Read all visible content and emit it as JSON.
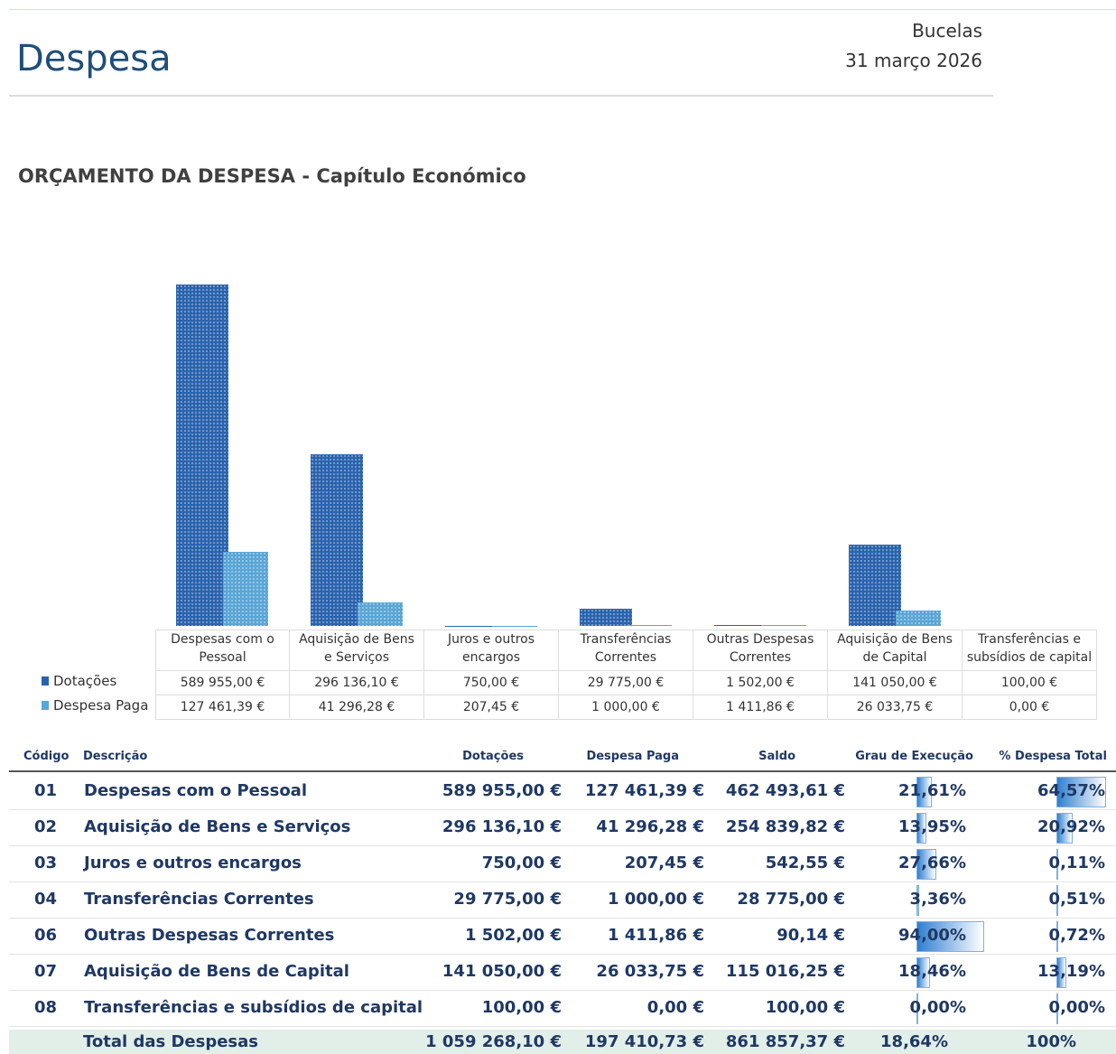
{
  "header": {
    "title": "Despesa",
    "location": "Bucelas",
    "date": "31 março 2026"
  },
  "chart_data": {
    "type": "bar",
    "title": "ORÇAMENTO DA DESPESA - Capítulo Económico",
    "categories": [
      "Despesas com o Pessoal",
      "Aquisição de Bens e Serviços",
      "Juros e outros encargos",
      "Transferências Correntes",
      "Outras Despesas Correntes",
      "Aquisição de Bens de Capital",
      "Transferências e subsídios de capital"
    ],
    "series": [
      {
        "name": "Dotações",
        "color": "#2a63ad",
        "values": [
          589955,
          296136.1,
          750,
          29775,
          1502,
          141050,
          100
        ],
        "value_labels": [
          "589 955,00 €",
          "296 136,10 €",
          "750,00 €",
          "29 775,00 €",
          "1 502,00 €",
          "141 050,00 €",
          "100,00 €"
        ]
      },
      {
        "name": "Despesa Paga",
        "color": "#5aa6d6",
        "values": [
          127461.39,
          41296.28,
          207.45,
          1000,
          1411.86,
          26033.75,
          0
        ],
        "value_labels": [
          "127 461,39 €",
          "41 296,28 €",
          "207,45 €",
          "1 000,00 €",
          "1 411,86 €",
          "26 033,75 €",
          "0,00 €"
        ]
      }
    ]
  },
  "table": {
    "columns": [
      "Código",
      "Descrição",
      "Dotações",
      "Despesa Paga",
      "Saldo",
      "Grau de Execução",
      "% Despesa Total"
    ],
    "rows": [
      {
        "code": "01",
        "description": "Despesas com o Pessoal",
        "dotacoes": "589 955,00 €",
        "paga": "127 461,39 €",
        "saldo": "462 493,61 €",
        "grau": 21.61,
        "grau_label": "21,61%",
        "share": 64.57,
        "share_label": "64,57%"
      },
      {
        "code": "02",
        "description": "Aquisição de Bens e Serviços",
        "dotacoes": "296 136,10 €",
        "paga": "41 296,28 €",
        "saldo": "254 839,82 €",
        "grau": 13.95,
        "grau_label": "13,95%",
        "share": 20.92,
        "share_label": "20,92%"
      },
      {
        "code": "03",
        "description": "Juros e outros encargos",
        "dotacoes": "750,00 €",
        "paga": "207,45 €",
        "saldo": "542,55 €",
        "grau": 27.66,
        "grau_label": "27,66%",
        "share": 0.11,
        "share_label": "0,11%"
      },
      {
        "code": "04",
        "description": "Transferências Correntes",
        "dotacoes": "29 775,00 €",
        "paga": "1 000,00 €",
        "saldo": "28 775,00 €",
        "grau": 3.36,
        "grau_label": "3,36%",
        "share": 0.51,
        "share_label": "0,51%"
      },
      {
        "code": "06",
        "description": "Outras Despesas Correntes",
        "dotacoes": "1 502,00 €",
        "paga": "1 411,86 €",
        "saldo": "90,14 €",
        "grau": 94.0,
        "grau_label": "94,00%",
        "share": 0.72,
        "share_label": "0,72%"
      },
      {
        "code": "07",
        "description": "Aquisição de Bens de Capital",
        "dotacoes": "141 050,00 €",
        "paga": "26 033,75 €",
        "saldo": "115 016,25 €",
        "grau": 18.46,
        "grau_label": "18,46%",
        "share": 13.19,
        "share_label": "13,19%"
      },
      {
        "code": "08",
        "description": "Transferências e subsídios de capital",
        "dotacoes": "100,00 €",
        "paga": "0,00 €",
        "saldo": "100,00 €",
        "grau": 0,
        "grau_label": "0,00%",
        "share": 0,
        "share_label": "0,00%"
      }
    ],
    "total": {
      "label": "Total das Despesas",
      "dotacoes": "1 059 268,10 €",
      "paga": "197 410,73 €",
      "saldo": "861 857,37 €",
      "grau": "18,64%",
      "share": "100%"
    }
  }
}
